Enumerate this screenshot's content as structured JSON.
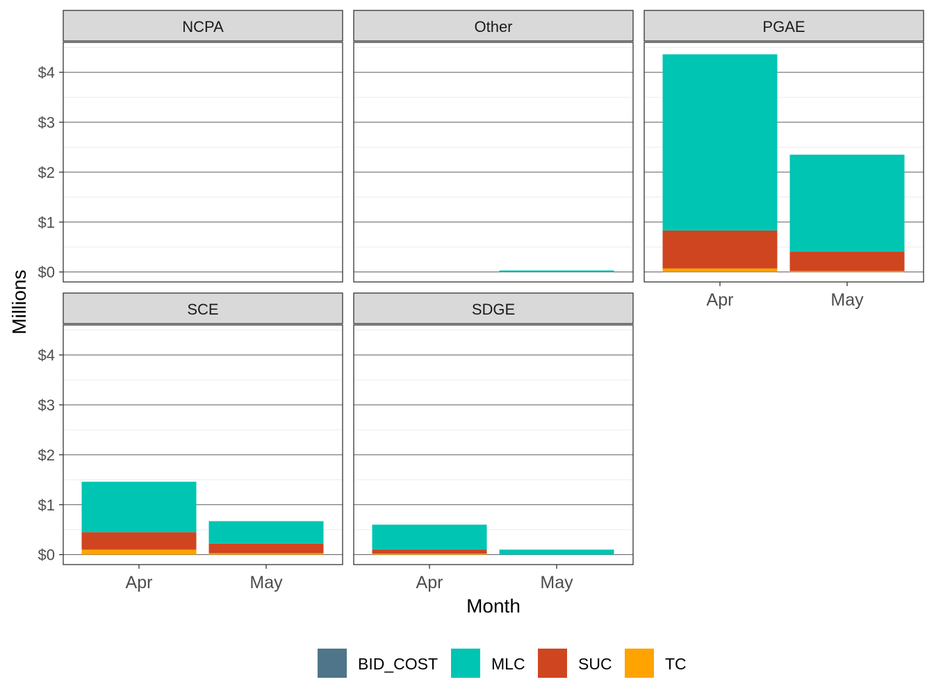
{
  "chart_data": {
    "type": "bar",
    "stacked": true,
    "facet_by": "utility",
    "facets": [
      "NCPA",
      "Other",
      "PGAE",
      "SCE",
      "SDGE"
    ],
    "categories": [
      "Apr",
      "May"
    ],
    "xlabel": "Month",
    "ylabel": "Millions",
    "ylim": [
      -0.2,
      4.6
    ],
    "yticks": [
      0,
      1,
      2,
      3,
      4
    ],
    "ytick_labels": [
      "$0",
      "$1",
      "$2",
      "$3",
      "$4"
    ],
    "grid": true,
    "legend": {
      "position": "bottom",
      "entries": [
        "BID_COST",
        "MLC",
        "SUC",
        "TC"
      ]
    },
    "colors": {
      "BID_COST": "#4e7589",
      "MLC": "#00c5b2",
      "SUC": "#cf4520",
      "TC": "#ffa300"
    },
    "stack_order": [
      "TC",
      "SUC",
      "MLC",
      "BID_COST"
    ],
    "data": {
      "NCPA": {
        "Apr": {
          "BID_COST": 0,
          "MLC": 0,
          "SUC": 0,
          "TC": 0
        },
        "May": {
          "BID_COST": 0,
          "MLC": 0,
          "SUC": 0,
          "TC": 0
        }
      },
      "Other": {
        "Apr": {
          "BID_COST": 0,
          "MLC": 0,
          "SUC": 0,
          "TC": 0
        },
        "May": {
          "BID_COST": 0,
          "MLC": 0.03,
          "SUC": 0,
          "TC": 0
        }
      },
      "PGAE": {
        "Apr": {
          "BID_COST": 0,
          "MLC": 3.53,
          "SUC": 0.76,
          "TC": 0.07
        },
        "May": {
          "BID_COST": 0,
          "MLC": 1.94,
          "SUC": 0.39,
          "TC": 0.02
        }
      },
      "SCE": {
        "Apr": {
          "BID_COST": 0,
          "MLC": 1.01,
          "SUC": 0.35,
          "TC": 0.1
        },
        "May": {
          "BID_COST": 0,
          "MLC": 0.45,
          "SUC": 0.19,
          "TC": 0.03
        }
      },
      "SDGE": {
        "Apr": {
          "BID_COST": 0,
          "MLC": 0.5,
          "SUC": 0.08,
          "TC": 0.02
        },
        "May": {
          "BID_COST": 0,
          "MLC": 0.1,
          "SUC": 0,
          "TC": 0
        }
      }
    }
  }
}
